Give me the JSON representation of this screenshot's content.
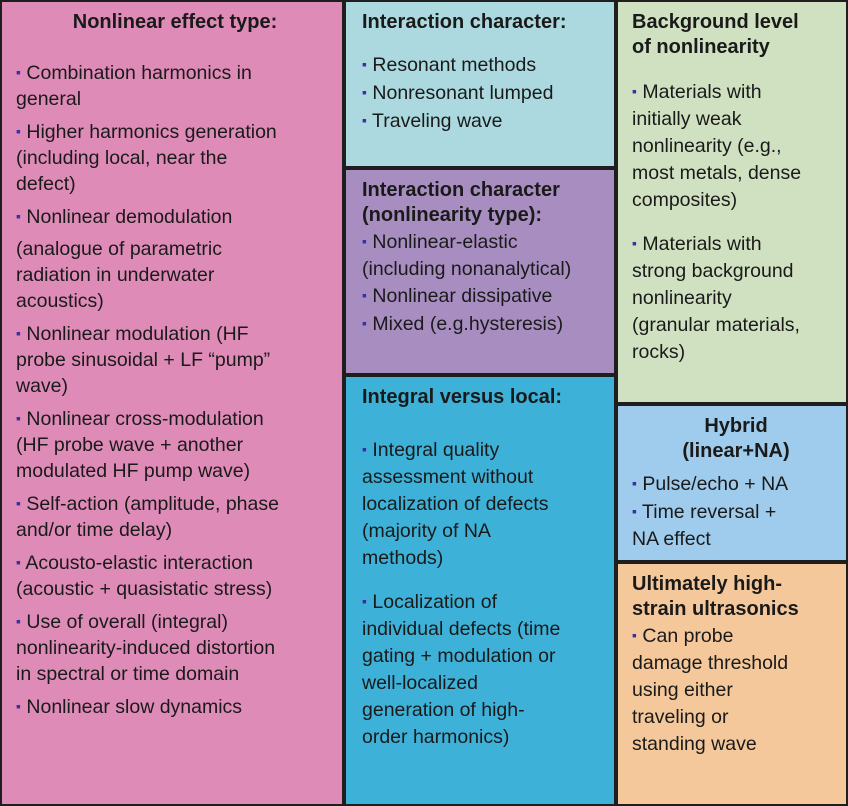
{
  "boxes": {
    "nonlinear_effect": {
      "title": "Nonlinear effect type:",
      "items": [
        [
          "Combination harmonics in",
          "general"
        ],
        [
          "Higher harmonics generation",
          "(including local, near the",
          "defect)"
        ],
        [
          "Nonlinear demodulation"
        ],
        [
          "(analogue of parametric",
          "radiation in underwater",
          "acoustics)"
        ],
        [
          "Nonlinear modulation (HF",
          "probe sinusoidal + LF “pump”",
          "wave)"
        ],
        [
          "Nonlinear cross-modulation",
          "(HF probe wave + another",
          "modulated HF pump wave)"
        ],
        [
          "Self-action (amplitude, phase",
          "and/or time delay)"
        ],
        [
          "Acousto-elastic interaction",
          "(acoustic + quasistatic stress)"
        ],
        [
          "Use of overall (integral)",
          "nonlinearity-induced distortion",
          "in spectral or time domain"
        ],
        [
          "Nonlinear slow dynamics"
        ]
      ]
    },
    "interaction_character": {
      "title": "Interaction character:",
      "items": [
        [
          "Resonant methods"
        ],
        [
          "Nonresonant lumped"
        ],
        [
          "Traveling wave"
        ]
      ]
    },
    "interaction_nonlinearity": {
      "title": [
        "Interaction character",
        "(nonlinearity type):"
      ],
      "items": [
        [
          "Nonlinear-elastic",
          "(including nonanalytical)"
        ],
        [
          "Nonlinear dissipative"
        ],
        [
          "Mixed (e.g.hysteresis)"
        ]
      ]
    },
    "integral_local": {
      "title": "Integral versus local:",
      "items": [
        [
          "Integral quality",
          "assessment without",
          "localization of defects",
          "(majority of NA",
          "methods)"
        ],
        [
          "Localization of",
          "individual defects (time",
          "gating + modulation or",
          "well-localized",
          "generation of high-",
          "order harmonics)"
        ]
      ]
    },
    "background_level": {
      "title": [
        "Background level",
        "of nonlinearity"
      ],
      "items": [
        [
          "Materials with",
          "initially weak",
          "nonlinearity (e.g.,",
          "most metals, dense",
          "composites)"
        ],
        [
          "Materials with",
          "strong background",
          "nonlinearity",
          "(granular materials,",
          "rocks)"
        ]
      ]
    },
    "hybrid": {
      "title": [
        "Hybrid",
        "(linear+NA)"
      ],
      "items": [
        [
          "Pulse/echo + NA"
        ],
        [
          "Time reversal +",
          "NA effect"
        ]
      ]
    },
    "high_strain": {
      "title": [
        "Ultimately  high-",
        "strain ultrasonics"
      ],
      "items": [
        [
          "Can probe",
          "damage threshold",
          "using either",
          "traveling or",
          "standing wave"
        ]
      ]
    }
  },
  "bullet_char": "▪",
  "colors": {
    "nonlinear_effect": "#df8bb8",
    "interaction_character": "#abd9df",
    "interaction_nonlinearity": "#a88dc0",
    "integral_local": "#3eb1d8",
    "background_level": "#cfe1c0",
    "hybrid": "#9fcbec",
    "high_strain": "#f4c89b",
    "bullet": "#3b2fa3"
  }
}
